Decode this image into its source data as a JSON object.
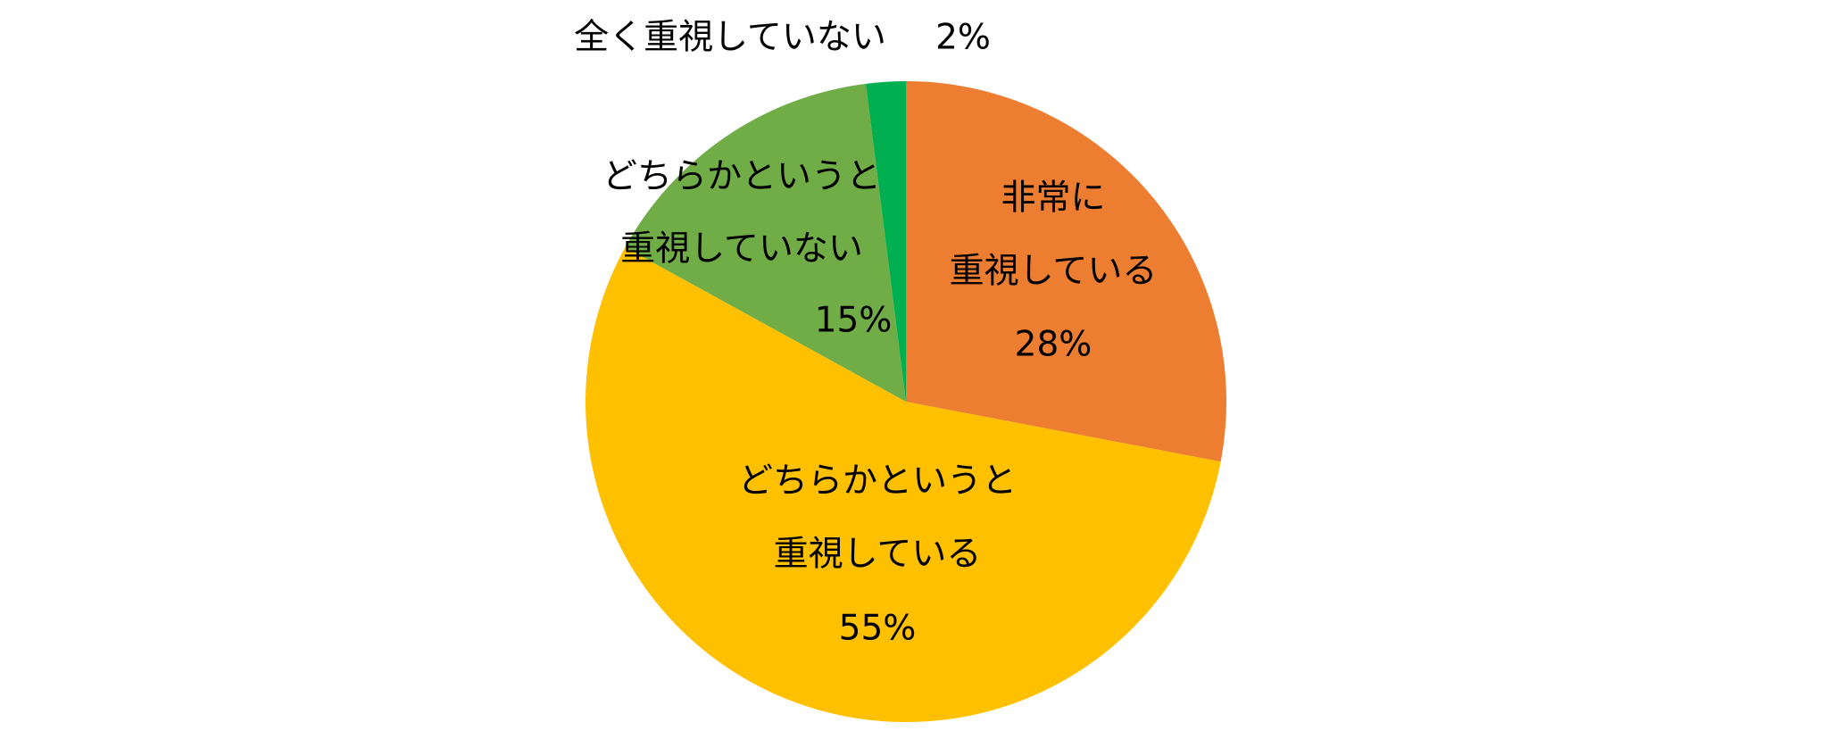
{
  "chart_data": {
    "type": "pie",
    "categories": [
      [
        "非常に",
        "重視している"
      ],
      [
        "どちらかというと",
        "重視している"
      ],
      [
        "どちらかというと",
        "重視していない"
      ],
      [
        "全く重視していない"
      ]
    ],
    "values": [
      28,
      55,
      15,
      2
    ],
    "value_labels": [
      "28%",
      "55%",
      "15%",
      "2%"
    ],
    "colors": [
      "#ED7D31",
      "#FFC000",
      "#70AD47",
      "#00B050"
    ]
  }
}
